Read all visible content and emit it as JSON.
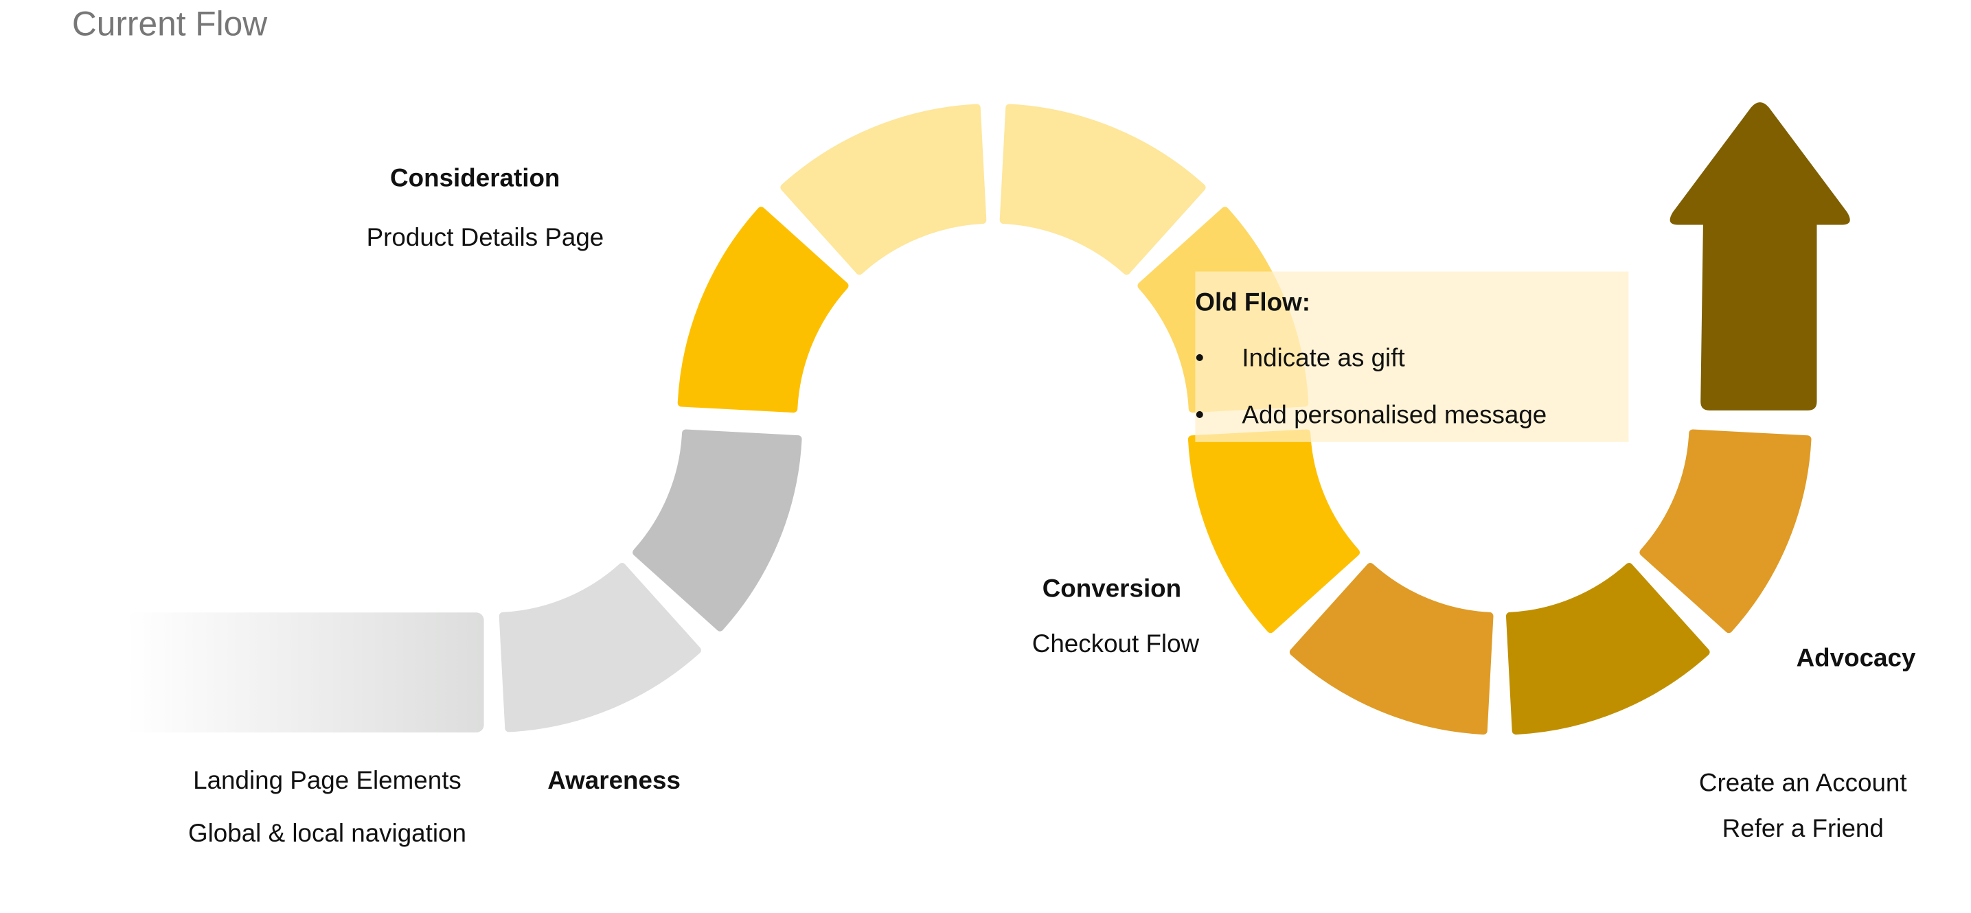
{
  "title": "Current Flow",
  "stages": {
    "awareness": {
      "label": "Awareness",
      "items": [
        "Landing Page Elements",
        "Global & local navigation"
      ]
    },
    "consideration": {
      "label": "Consideration",
      "items": [
        "Product Details Page"
      ]
    },
    "conversion": {
      "label": "Conversion",
      "items": [
        "Checkout Flow"
      ]
    },
    "advocacy": {
      "label": "Advocacy",
      "items": [
        "Create an Account",
        "Refer a Friend"
      ]
    }
  },
  "note": {
    "heading": "Old Flow:",
    "bullet": "•",
    "items": [
      "Indicate as gift",
      "Add personalised message"
    ]
  },
  "colors": {
    "title": "#777777",
    "gray_light": "#dcdddc",
    "gray": "#c0c0c0",
    "yellow": "#fdc000",
    "pale_yellow": "#fee69a",
    "mid_yellow": "#fed865",
    "orange": "#df9b26",
    "dark_gold": "#c08f00",
    "arrow": "#7f5f00",
    "note_bg": "#fff0c8"
  }
}
